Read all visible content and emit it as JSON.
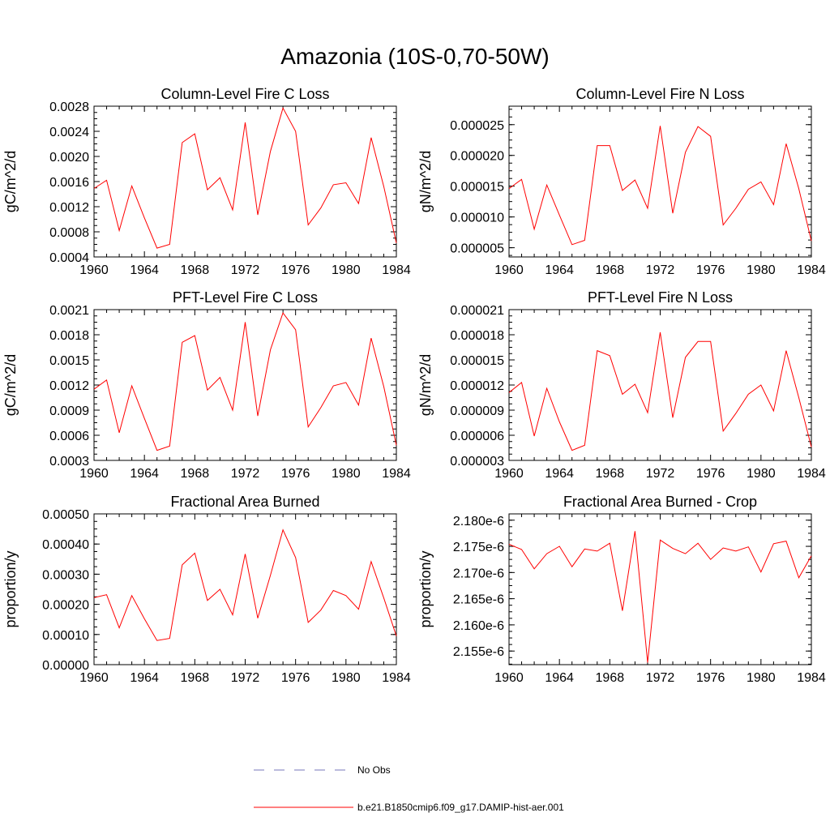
{
  "figure": {
    "title": "Amazonia (10S-0,70-50W)"
  },
  "legend": {
    "obs_label": "No Obs",
    "model_label": "b.e21.B1850cmip6.f09_g17.DAMIP-hist-aer.001",
    "model_color": "#ff0000",
    "obs_color": "#7777bb"
  },
  "chart_data": [
    {
      "type": "line",
      "title": "Column-Level Fire C Loss",
      "ylabel": "gC/m^2/d",
      "xlim": [
        1960,
        1984
      ],
      "ylim": [
        0.0004,
        0.0028
      ],
      "xticks": [
        "1960",
        "1964",
        "1968",
        "1972",
        "1976",
        "1980",
        "1984"
      ],
      "yticks": [
        "0.0004",
        "0.0008",
        "0.0012",
        "0.0016",
        "0.0020",
        "0.0024",
        "0.0028"
      ],
      "x": [
        1960,
        1961,
        1962,
        1963,
        1964,
        1965,
        1966,
        1967,
        1968,
        1969,
        1970,
        1971,
        1972,
        1973,
        1974,
        1975,
        1976,
        1977,
        1978,
        1979,
        1980,
        1981,
        1982,
        1983,
        1984
      ],
      "series": [
        {
          "name": "b.e21.B1850cmip6.f09_g17.DAMIP-hist-aer.001",
          "values": [
            0.00149,
            0.00162,
            0.00082,
            0.00153,
            0.00102,
            0.00054,
            0.0006,
            0.00222,
            0.00236,
            0.00147,
            0.00166,
            0.00115,
            0.00254,
            0.00107,
            0.00208,
            0.00277,
            0.0024,
            0.00091,
            0.00118,
            0.00155,
            0.00158,
            0.00125,
            0.0023,
            0.00152,
            0.00062
          ]
        }
      ]
    },
    {
      "type": "line",
      "title": "Column-Level Fire N Loss",
      "ylabel": "gN/m^2/d",
      "xlim": [
        1960,
        1984
      ],
      "ylim": [
        3.5e-06,
        2.8e-05
      ],
      "xticks": [
        "1960",
        "1964",
        "1968",
        "1972",
        "1976",
        "1980",
        "1984"
      ],
      "yticks": [
        "0.000005",
        "0.000010",
        "0.000015",
        "0.000020",
        "0.000025"
      ],
      "x": [
        1960,
        1961,
        1962,
        1963,
        1964,
        1965,
        1966,
        1967,
        1968,
        1969,
        1970,
        1971,
        1972,
        1973,
        1974,
        1975,
        1976,
        1977,
        1978,
        1979,
        1980,
        1981,
        1982,
        1983,
        1984
      ],
      "series": [
        {
          "name": "b.e21.B1850cmip6.f09_g17.DAMIP-hist-aer.001",
          "values": [
            1.46e-05,
            1.61e-05,
            8e-06,
            1.52e-05,
            1.03e-05,
            5.5e-06,
            6.2e-06,
            2.16e-05,
            2.16e-05,
            1.43e-05,
            1.6e-05,
            1.14e-05,
            2.48e-05,
            1.06e-05,
            2.05e-05,
            2.47e-05,
            2.31e-05,
            8.7e-06,
            1.14e-05,
            1.45e-05,
            1.57e-05,
            1.2e-05,
            2.19e-05,
            1.46e-05,
            6.1e-06
          ]
        }
      ]
    },
    {
      "type": "line",
      "title": "PFT-Level Fire C Loss",
      "ylabel": "gC/m^2/d",
      "xlim": [
        1960,
        1984
      ],
      "ylim": [
        0.0003,
        0.0021
      ],
      "xticks": [
        "1960",
        "1964",
        "1968",
        "1972",
        "1976",
        "1980",
        "1984"
      ],
      "yticks": [
        "0.0003",
        "0.0006",
        "0.0009",
        "0.0012",
        "0.0015",
        "0.0018",
        "0.0021"
      ],
      "x": [
        1960,
        1961,
        1962,
        1963,
        1964,
        1965,
        1966,
        1967,
        1968,
        1969,
        1970,
        1971,
        1972,
        1973,
        1974,
        1975,
        1976,
        1977,
        1978,
        1979,
        1980,
        1981,
        1982,
        1983,
        1984
      ],
      "series": [
        {
          "name": "b.e21.B1850cmip6.f09_g17.DAMIP-hist-aer.001",
          "values": [
            0.00115,
            0.00126,
            0.00063,
            0.00119,
            0.0008,
            0.00042,
            0.00047,
            0.00171,
            0.00179,
            0.00114,
            0.00129,
            0.0009,
            0.00195,
            0.00083,
            0.00162,
            0.00206,
            0.00186,
            0.0007,
            0.00093,
            0.00119,
            0.00123,
            0.00096,
            0.00176,
            0.00118,
            0.00048
          ]
        }
      ]
    },
    {
      "type": "line",
      "title": "PFT-Level Fire N Loss",
      "ylabel": "gN/m^2/d",
      "xlim": [
        1960,
        1984
      ],
      "ylim": [
        3e-06,
        2.1e-05
      ],
      "xticks": [
        "1960",
        "1964",
        "1968",
        "1972",
        "1976",
        "1980",
        "1984"
      ],
      "yticks": [
        "0.000003",
        "0.000006",
        "0.000009",
        "0.000012",
        "0.000015",
        "0.000018",
        "0.000021"
      ],
      "x": [
        1960,
        1961,
        1962,
        1963,
        1964,
        1965,
        1966,
        1967,
        1968,
        1969,
        1970,
        1971,
        1972,
        1973,
        1974,
        1975,
        1976,
        1977,
        1978,
        1979,
        1980,
        1981,
        1982,
        1983,
        1984
      ],
      "series": [
        {
          "name": "b.e21.B1850cmip6.f09_g17.DAMIP-hist-aer.001",
          "values": [
            1.11e-05,
            1.23e-05,
            5.9e-06,
            1.16e-05,
            7.6e-06,
            4.2e-06,
            4.8e-06,
            1.61e-05,
            1.55e-05,
            1.09e-05,
            1.21e-05,
            8.7e-06,
            1.83e-05,
            8.1e-06,
            1.53e-05,
            1.72e-05,
            1.72e-05,
            6.5e-06,
            8.6e-06,
            1.09e-05,
            1.2e-05,
            8.9e-06,
            1.61e-05,
            1.05e-05,
            4.6e-06
          ]
        }
      ]
    },
    {
      "type": "line",
      "title": "Fractional Area Burned",
      "ylabel": "proportion/y",
      "xlim": [
        1960,
        1984
      ],
      "ylim": [
        0,
        0.0005
      ],
      "xticks": [
        "1960",
        "1964",
        "1968",
        "1972",
        "1976",
        "1980",
        "1984"
      ],
      "yticks": [
        "0.00000",
        "0.00010",
        "0.00020",
        "0.00030",
        "0.00040",
        "0.00050"
      ],
      "x": [
        1960,
        1961,
        1962,
        1963,
        1964,
        1965,
        1966,
        1967,
        1968,
        1969,
        1970,
        1971,
        1972,
        1973,
        1974,
        1975,
        1976,
        1977,
        1978,
        1979,
        1980,
        1981,
        1982,
        1983,
        1984
      ],
      "series": [
        {
          "name": "b.e21.B1850cmip6.f09_g17.DAMIP-hist-aer.001",
          "values": [
            0.000222,
            0.000232,
            0.000122,
            0.000229,
            0.000152,
            8e-05,
            8.7e-05,
            0.000331,
            0.00037,
            0.000213,
            0.00025,
            0.000165,
            0.000367,
            0.000154,
            0.000296,
            0.000447,
            0.000355,
            0.00014,
            0.000181,
            0.000246,
            0.000229,
            0.000184,
            0.000342,
            0.000221,
            9.5e-05
          ]
        }
      ]
    },
    {
      "type": "line",
      "title": "Fractional Area Burned - Crop",
      "ylabel": "proportion/y",
      "xlim": [
        1960,
        1984
      ],
      "ylim": [
        2.1524e-06,
        2.1812e-06
      ],
      "xticks": [
        "1960",
        "1964",
        "1968",
        "1972",
        "1976",
        "1980",
        "1984"
      ],
      "yticks": [
        "2.155e-6",
        "2.160e-6",
        "2.165e-6",
        "2.170e-6",
        "2.175e-6",
        "2.180e-6"
      ],
      "ytick_values": [
        2.155e-06,
        2.16e-06,
        2.165e-06,
        2.17e-06,
        2.175e-06,
        2.18e-06
      ],
      "x": [
        1960,
        1961,
        1962,
        1963,
        1964,
        1965,
        1966,
        1967,
        1968,
        1969,
        1970,
        1971,
        1972,
        1973,
        1974,
        1975,
        1976,
        1977,
        1978,
        1979,
        1980,
        1981,
        1982,
        1983,
        1984
      ],
      "series": [
        {
          "name": "b.e21.B1850cmip6.f09_g17.DAMIP-hist-aer.001",
          "values": [
            2.1754e-06,
            2.1744e-06,
            2.1707e-06,
            2.1736e-06,
            2.175e-06,
            2.1711e-06,
            2.1745e-06,
            2.1741e-06,
            2.1756e-06,
            2.1627e-06,
            2.1779e-06,
            2.1528e-06,
            2.1762e-06,
            2.1746e-06,
            2.1736e-06,
            2.1756e-06,
            2.1725e-06,
            2.1747e-06,
            2.1741e-06,
            2.1749e-06,
            2.1701e-06,
            2.1755e-06,
            2.176e-06,
            2.169e-06,
            2.1732e-06
          ]
        }
      ]
    }
  ]
}
